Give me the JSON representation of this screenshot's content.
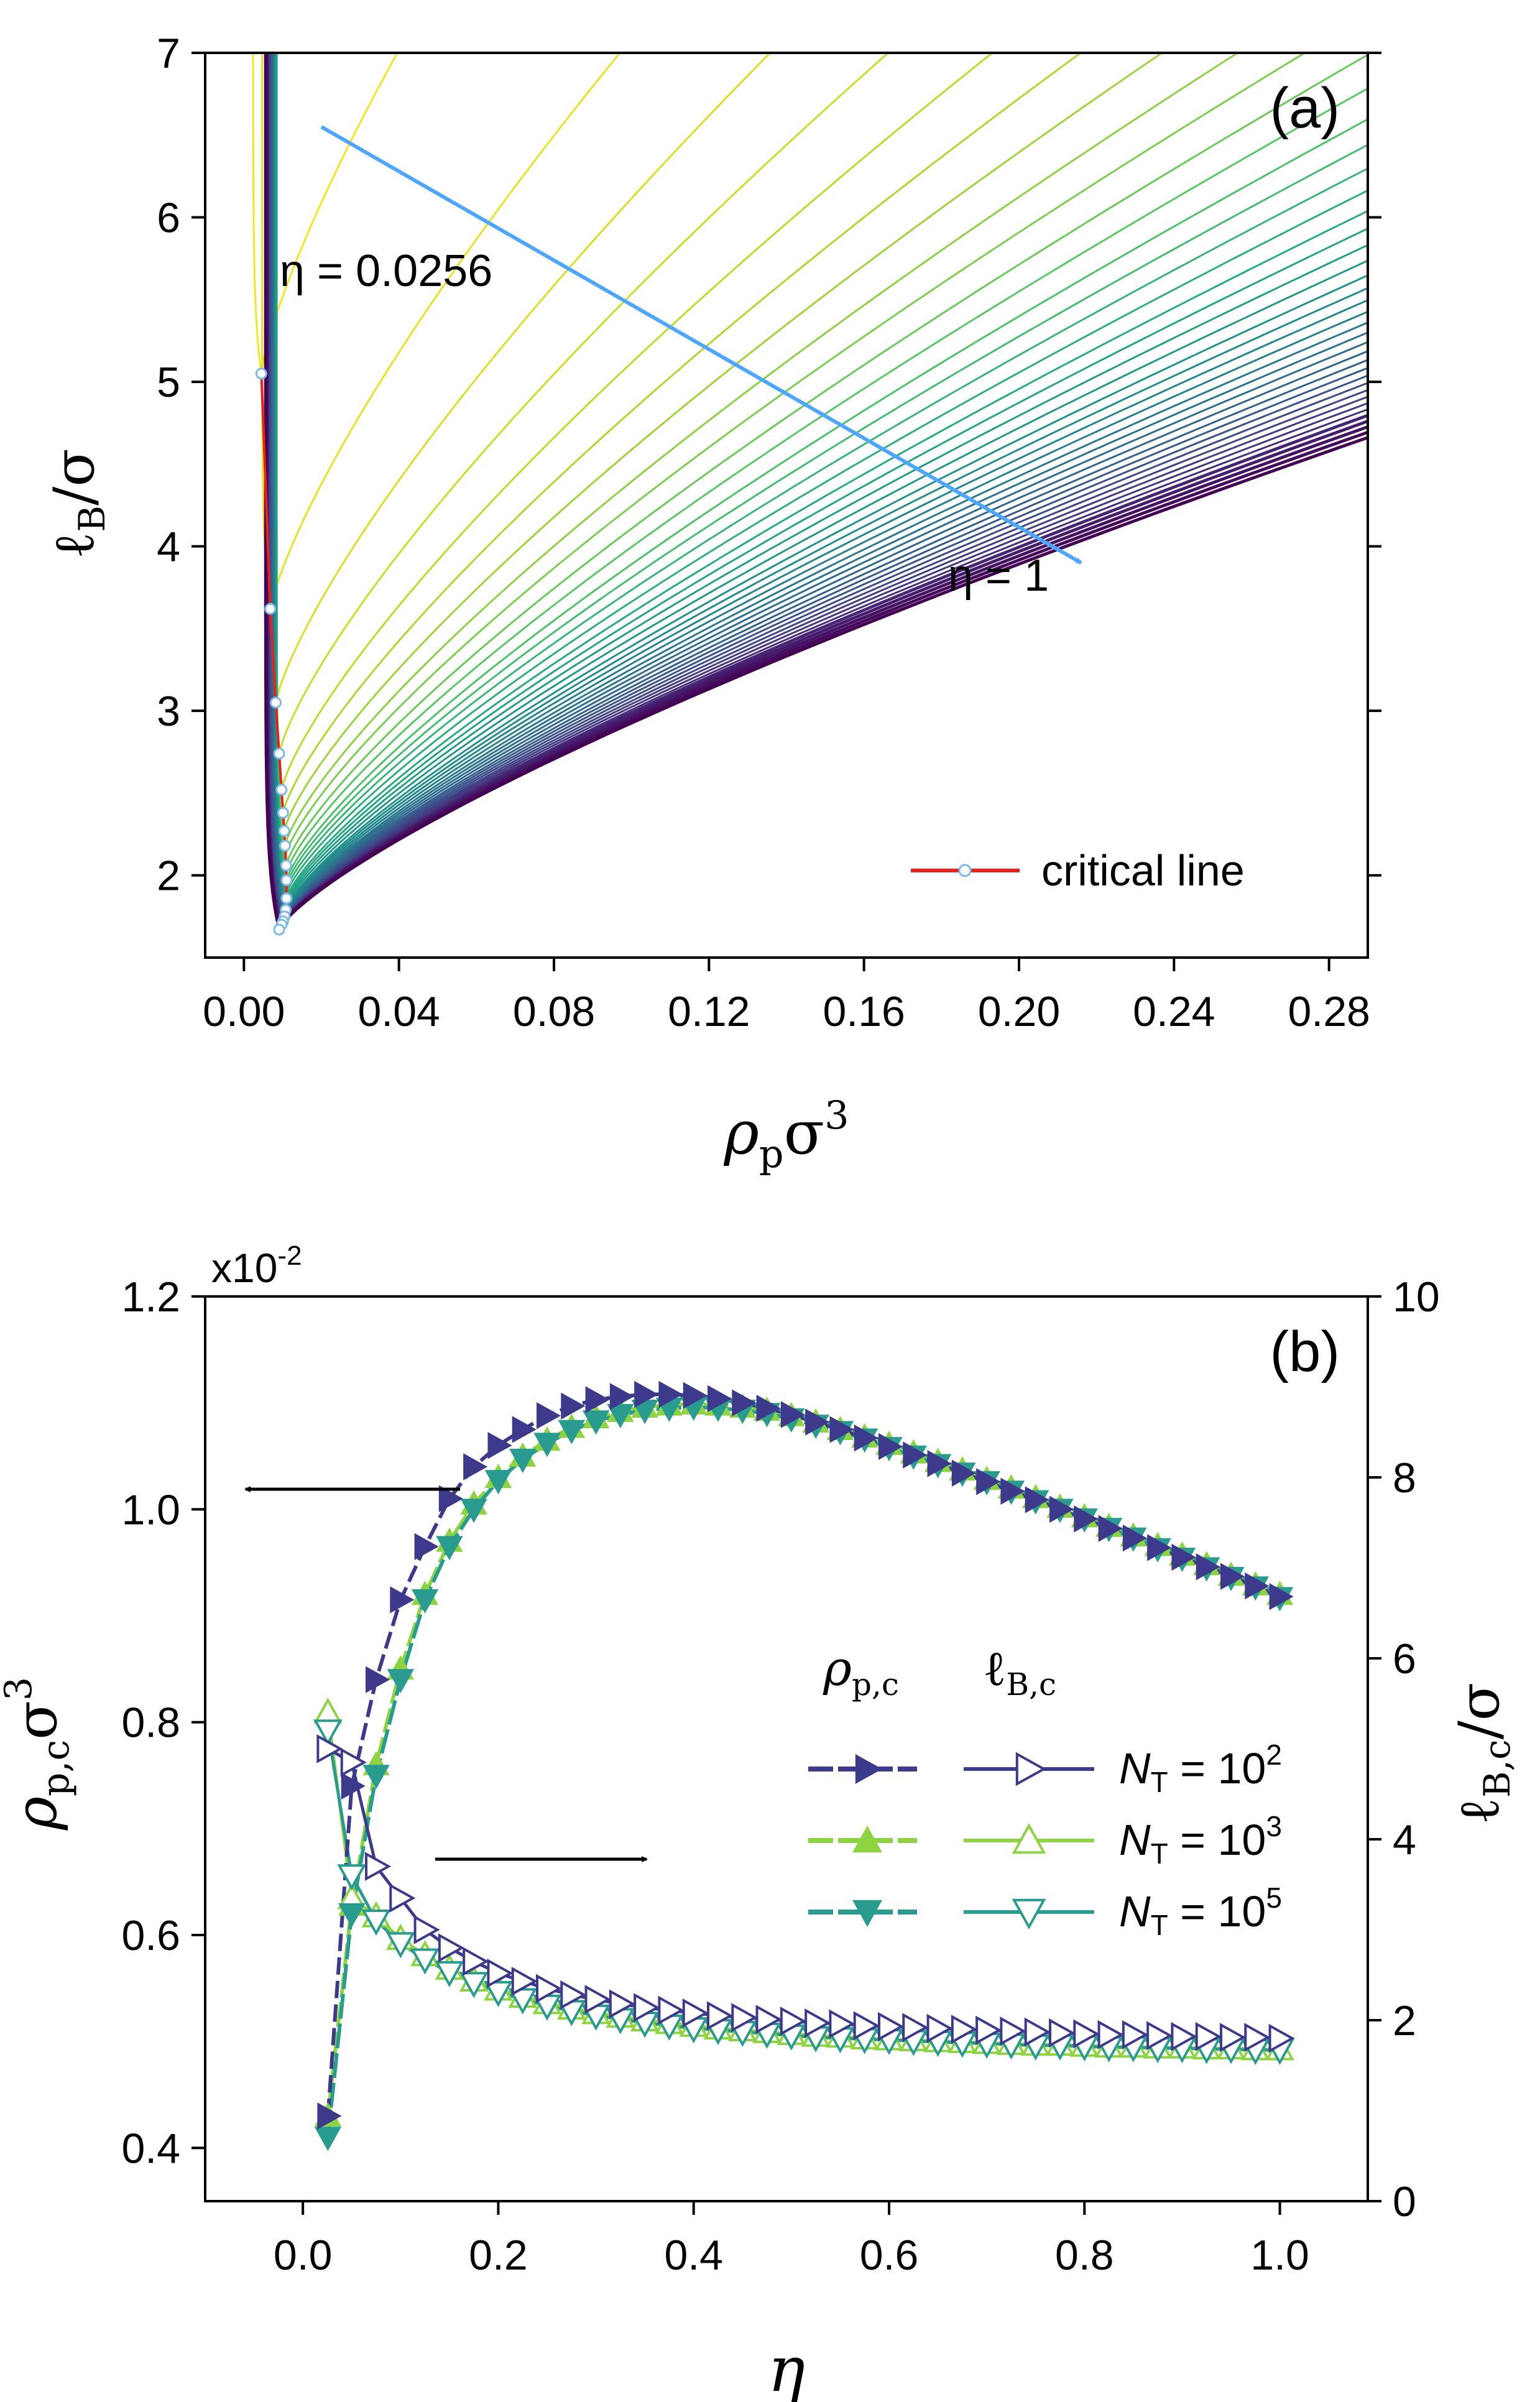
{
  "chart_data": [
    {
      "panel": "(a)",
      "type": "line",
      "xlabel_main": "ρ",
      "xlabel_sub": "p",
      "xlabel_tail": "σ",
      "xlabel_sup": "3",
      "ylabel_main": "ℓ",
      "ylabel_sub": "B",
      "ylabel_tail": "/σ",
      "xlim": [
        -0.01,
        0.29
      ],
      "ylim": [
        1.5,
        7.0
      ],
      "xticks": [
        "0.00",
        "0.04",
        "0.08",
        "0.12",
        "0.16",
        "0.20",
        "0.24",
        "0.28"
      ],
      "xtick_values": [
        0.0,
        0.04,
        0.08,
        0.12,
        0.16,
        0.2,
        0.24,
        0.28
      ],
      "yticks": [
        "2",
        "3",
        "4",
        "5",
        "6",
        "7"
      ],
      "ytick_values": [
        2,
        3,
        4,
        5,
        6,
        7
      ],
      "annotation_top": "η = 0.0256",
      "annotation_bottom": "η = 1",
      "arrow_color": "#4da6ff",
      "critical_line_label": "critical line",
      "critical_line_color": "#e8221b",
      "critical_points": [
        {
          "eta": 0.0256,
          "x": 0.0045,
          "y": 5.05
        },
        {
          "eta": 0.05,
          "x": 0.0068,
          "y": 3.62
        },
        {
          "eta": 0.075,
          "x": 0.0082,
          "y": 3.05
        },
        {
          "eta": 0.1,
          "x": 0.0091,
          "y": 2.74
        },
        {
          "eta": 0.125,
          "x": 0.0097,
          "y": 2.52
        },
        {
          "eta": 0.15,
          "x": 0.0101,
          "y": 2.38
        },
        {
          "eta": 0.175,
          "x": 0.0104,
          "y": 2.27
        },
        {
          "eta": 0.2,
          "x": 0.0106,
          "y": 2.18
        },
        {
          "eta": 0.25,
          "x": 0.0109,
          "y": 2.06
        },
        {
          "eta": 0.3,
          "x": 0.011,
          "y": 1.97
        },
        {
          "eta": 0.4,
          "x": 0.011,
          "y": 1.86
        },
        {
          "eta": 0.5,
          "x": 0.0108,
          "y": 1.79
        },
        {
          "eta": 0.6,
          "x": 0.0105,
          "y": 1.75
        },
        {
          "eta": 0.7,
          "x": 0.0101,
          "y": 1.72
        },
        {
          "eta": 0.8,
          "x": 0.0097,
          "y": 1.7
        },
        {
          "eta": 1.0,
          "x": 0.0091,
          "y": 1.67
        }
      ],
      "colormap": [
        "#f4e61e",
        "#b2d82b",
        "#5cc863",
        "#27ad81",
        "#21908d",
        "#2c728e",
        "#3b528b",
        "#472d7b",
        "#440154"
      ],
      "curve_count": 40,
      "curve_model": "asymmetric spinodal-like envelope; left branch x_left=x_c-(1-exp(-(y-y_c)/0.4)), right branch width a(η)*(y-y_c)^1.3"
    },
    {
      "panel": "(b)",
      "type": "line",
      "xlabel": "η",
      "ylabel_left_main": "ρ",
      "ylabel_left_sub": "p,c",
      "ylabel_left_tail": "σ",
      "ylabel_left_sup": "3",
      "ylabel_right_main": "ℓ",
      "ylabel_right_sub": "B,c",
      "ylabel_right_tail": "/σ",
      "scale_label": "x10",
      "scale_sup": "-2",
      "xlim": [
        -0.1,
        1.09
      ],
      "ylim_left": [
        0.35,
        1.2
      ],
      "ylim_right": [
        0,
        10
      ],
      "xticks": [
        "0.0",
        "0.2",
        "0.4",
        "0.6",
        "0.8",
        "1.0"
      ],
      "xtick_values": [
        0.0,
        0.2,
        0.4,
        0.6,
        0.8,
        1.0
      ],
      "yticks_left": [
        "0.4",
        "0.6",
        "0.8",
        "1.0",
        "1.2"
      ],
      "ytick_left_values": [
        0.4,
        0.6,
        0.8,
        1.0,
        1.2
      ],
      "yticks_right": [
        "0",
        "2",
        "4",
        "6",
        "8",
        "10"
      ],
      "ytick_right_values": [
        0,
        2,
        4,
        6,
        8,
        10
      ],
      "eta": [
        0.0256,
        0.05,
        0.075,
        0.1,
        0.125,
        0.15,
        0.175,
        0.2,
        0.225,
        0.25,
        0.275,
        0.3,
        0.325,
        0.35,
        0.375,
        0.4,
        0.425,
        0.45,
        0.475,
        0.5,
        0.525,
        0.55,
        0.575,
        0.6,
        0.625,
        0.65,
        0.675,
        0.7,
        0.725,
        0.75,
        0.775,
        0.8,
        0.825,
        0.85,
        0.875,
        0.9,
        0.925,
        0.95,
        0.975,
        1.0
      ],
      "legend_col_rho": "ρ",
      "legend_col_rho_sub": "p,c",
      "legend_col_lb": "ℓ",
      "legend_col_lb_sub": "B,c",
      "series": [
        {
          "name_main": "N",
          "name_sub": "T",
          "name_eq": " = 10",
          "name_sup": "2",
          "color": "#3d3a8c",
          "rho_marker": "right",
          "lb_marker": "right",
          "rho_values": [
            0.43,
            0.74,
            0.84,
            0.915,
            0.965,
            1.01,
            1.04,
            1.06,
            1.075,
            1.088,
            1.097,
            1.103,
            1.106,
            1.108,
            1.108,
            1.107,
            1.104,
            1.1,
            1.095,
            1.089,
            1.082,
            1.075,
            1.067,
            1.059,
            1.051,
            1.043,
            1.034,
            1.026,
            1.017,
            1.009,
            1.0,
            0.991,
            0.982,
            0.973,
            0.964,
            0.955,
            0.946,
            0.937,
            0.928,
            0.918
          ],
          "lb_values": [
            5.0,
            4.85,
            3.7,
            3.35,
            3.0,
            2.8,
            2.65,
            2.52,
            2.43,
            2.35,
            2.28,
            2.23,
            2.18,
            2.14,
            2.11,
            2.08,
            2.05,
            2.03,
            2.01,
            1.99,
            1.97,
            1.96,
            1.94,
            1.93,
            1.92,
            1.91,
            1.9,
            1.89,
            1.88,
            1.87,
            1.86,
            1.85,
            1.84,
            1.84,
            1.83,
            1.82,
            1.82,
            1.81,
            1.81,
            1.8
          ]
        },
        {
          "name_main": "N",
          "name_sub": "T",
          "name_eq": " = 10",
          "name_sup": "3",
          "color": "#8ed442",
          "rho_marker": "up",
          "lb_marker": "up",
          "rho_values": [
            0.43,
            0.628,
            0.76,
            0.85,
            0.92,
            0.97,
            1.005,
            1.03,
            1.05,
            1.065,
            1.077,
            1.086,
            1.092,
            1.096,
            1.098,
            1.099,
            1.098,
            1.096,
            1.093,
            1.088,
            1.082,
            1.075,
            1.068,
            1.061,
            1.053,
            1.045,
            1.037,
            1.028,
            1.02,
            1.011,
            1.002,
            0.993,
            0.984,
            0.975,
            0.966,
            0.957,
            0.948,
            0.938,
            0.929,
            0.92
          ],
          "lb_values": [
            5.4,
            3.35,
            3.15,
            2.9,
            2.72,
            2.57,
            2.44,
            2.34,
            2.26,
            2.19,
            2.13,
            2.08,
            2.04,
            2.0,
            1.97,
            1.94,
            1.91,
            1.89,
            1.87,
            1.85,
            1.83,
            1.82,
            1.8,
            1.79,
            1.78,
            1.77,
            1.76,
            1.75,
            1.74,
            1.73,
            1.73,
            1.72,
            1.71,
            1.71,
            1.7,
            1.7,
            1.69,
            1.69,
            1.68,
            1.68
          ]
        },
        {
          "name_main": "N",
          "name_sub": "T",
          "name_eq": " = 10",
          "name_sup": "5",
          "color": "#2a9b8f",
          "rho_marker": "down",
          "lb_marker": "down",
          "rho_values": [
            0.41,
            0.62,
            0.75,
            0.84,
            0.915,
            0.965,
            1.0,
            1.027,
            1.047,
            1.062,
            1.074,
            1.083,
            1.089,
            1.093,
            1.095,
            1.096,
            1.095,
            1.093,
            1.09,
            1.085,
            1.079,
            1.073,
            1.066,
            1.058,
            1.05,
            1.042,
            1.034,
            1.026,
            1.017,
            1.008,
            1.0,
            0.991,
            0.982,
            0.973,
            0.963,
            0.954,
            0.945,
            0.936,
            0.927,
            0.917
          ],
          "lb_values": [
            5.2,
            3.6,
            3.1,
            2.85,
            2.67,
            2.53,
            2.41,
            2.31,
            2.23,
            2.16,
            2.1,
            2.05,
            2.01,
            1.97,
            1.94,
            1.91,
            1.89,
            1.87,
            1.85,
            1.83,
            1.81,
            1.8,
            1.79,
            1.78,
            1.77,
            1.76,
            1.75,
            1.74,
            1.73,
            1.72,
            1.72,
            1.71,
            1.7,
            1.7,
            1.69,
            1.69,
            1.68,
            1.68,
            1.67,
            1.67
          ]
        }
      ]
    }
  ]
}
